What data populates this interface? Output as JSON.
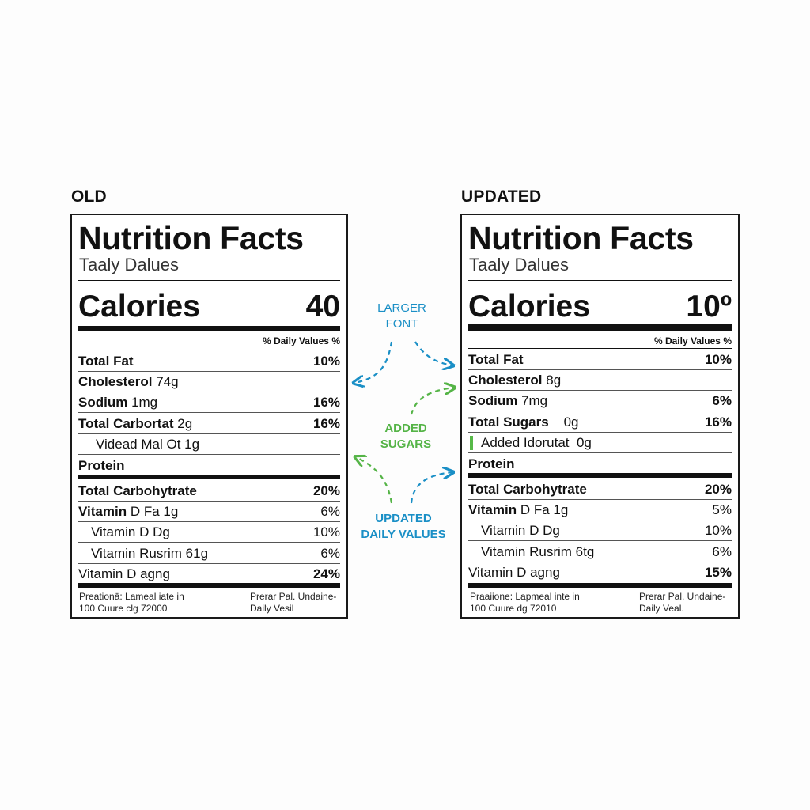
{
  "colors": {
    "callout_blue": "#1a8fc6",
    "callout_green": "#55b447",
    "highlight_green": "#57b948"
  },
  "old": {
    "heading": "OLD",
    "title": "Nutrition Facts",
    "serving": "Taaly Dalues",
    "calories_label": "Calories",
    "calories_value": "40",
    "dv_header": "% Daily Values %",
    "rows": [
      {
        "bold_part": "Total Fat",
        "rest": "",
        "pct": "10%"
      },
      {
        "bold_part": "Cholesterol",
        "rest": " 74g",
        "pct": ""
      },
      {
        "bold_part": "Sodium",
        "rest": " 1mg",
        "pct": "16%"
      },
      {
        "bold_part": "Total Carbortat",
        "rest": " 2g",
        "pct": "16%"
      },
      {
        "bold_part": "",
        "rest": "Videad Mal Ot 1g",
        "pct": ""
      },
      {
        "bold_part": "Protein",
        "rest": "",
        "pct": ""
      },
      {
        "bold_part": "Total Carbohytrate",
        "rest": "",
        "pct": "20%"
      },
      {
        "bold_part": "Vitamin",
        "rest": " D Fa 1g",
        "pct": "6%"
      },
      {
        "bold_part": "",
        "rest": "Vitamin D Dg",
        "pct": "10%"
      },
      {
        "bold_part": "",
        "rest": "Vitamin Rusrim 61g",
        "pct": "6%"
      },
      {
        "bold_part": "",
        "rest": "Vitamin D agng",
        "pct": "24%"
      }
    ],
    "footer_left": "Preationā: Lameal iate in\n100 Cuure clg 72000",
    "footer_right": "Prerar Pal. Undaine-\nDaily Vesil"
  },
  "updated": {
    "heading": "UPDATED",
    "title": "Nutrition Facts",
    "serving": "Taaly Dalues",
    "calories_label": "Calories",
    "calories_value": "10º",
    "dv_header": "% Daily Values %",
    "rows": [
      {
        "bold_part": "Total Fat",
        "rest": "",
        "pct": "10%"
      },
      {
        "bold_part": "Cholesterol",
        "rest": " 8g",
        "pct": ""
      },
      {
        "bold_part": "Sodium",
        "rest": " 7mg",
        "pct": "6%"
      },
      {
        "bold_part": "Total Sugars",
        "rest": "    0g",
        "pct": "16%"
      },
      {
        "bold_part": "",
        "rest": "Added Idorutat  0g",
        "pct": ""
      },
      {
        "bold_part": "Protein",
        "rest": "",
        "pct": ""
      },
      {
        "bold_part": "Total Carbohytrate",
        "rest": "",
        "pct": "20%"
      },
      {
        "bold_part": "Vitamin",
        "rest": " D Fa 1g",
        "pct": "5%"
      },
      {
        "bold_part": "",
        "rest": "Vitamin D Dg",
        "pct": "10%"
      },
      {
        "bold_part": "",
        "rest": "Vitamin Rusrim 6tg",
        "pct": "6%"
      },
      {
        "bold_part": "",
        "rest": "Vitamin D agng",
        "pct": "15%"
      }
    ],
    "footer_left": "Praaiione: Lapmeal inte in\n100 Cuure dg 72010",
    "footer_right": "Prerar Pal. Undaine-\nDaily Veal."
  },
  "callouts": {
    "larger_font": "LARGER\nFONT",
    "added_sugars": "ADDED\nSUGARS",
    "updated_dv": "UPDATED\nDAILY VALUES"
  }
}
